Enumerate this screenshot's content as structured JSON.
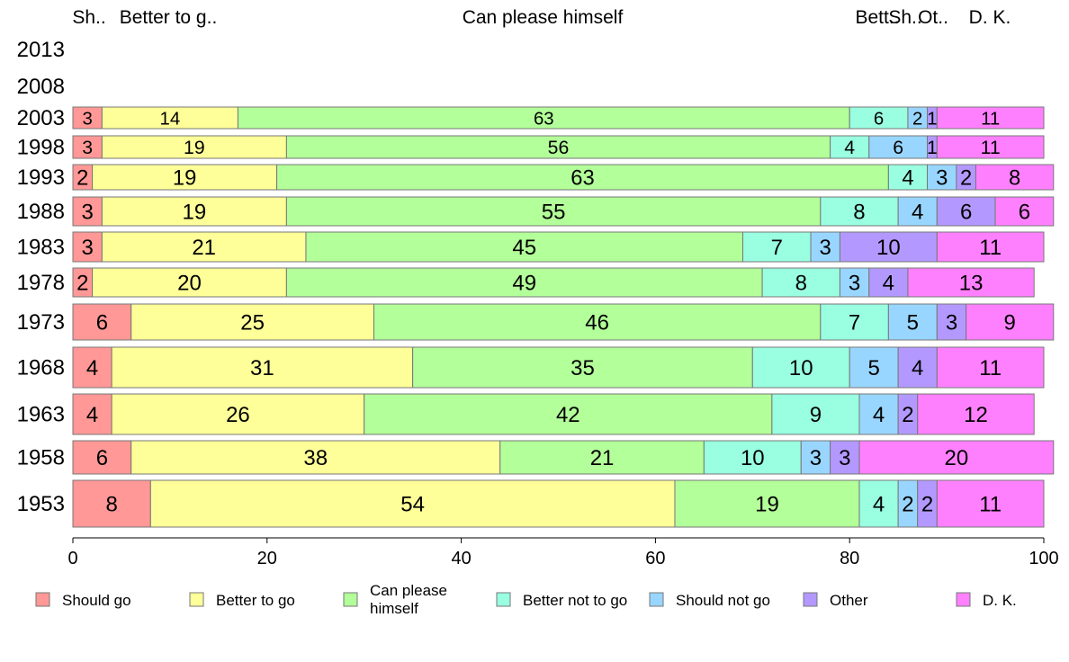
{
  "chart_data": {
    "type": "bar",
    "orientation": "horizontal",
    "stacked": true,
    "title": "",
    "xlabel": "",
    "ylabel": "",
    "xlim": [
      0,
      100
    ],
    "x_ticks": [
      "0",
      "20",
      "40",
      "60",
      "80",
      "100"
    ],
    "grid": false,
    "legend_position": "bottom",
    "top_labels": [
      "Sh..",
      "Better to g..",
      "Can please himself",
      "Bett..",
      "Sh..",
      "Ot..",
      "D. K."
    ],
    "categories": [
      "2013",
      "2008",
      "2003",
      "1998",
      "1993",
      "1988",
      "1983",
      "1978",
      "1973",
      "1968",
      "1963",
      "1958",
      "1953"
    ],
    "series": [
      {
        "name": "Should go",
        "color": "#ff9896",
        "values": [
          null,
          null,
          3,
          3,
          2,
          3,
          3,
          2,
          6,
          4,
          4,
          6,
          8
        ]
      },
      {
        "name": "Better to go",
        "color": "#ffff99",
        "values": [
          null,
          null,
          14,
          19,
          19,
          19,
          21,
          20,
          25,
          31,
          26,
          38,
          54
        ]
      },
      {
        "name": "Can please himself",
        "color": "#b3ff99",
        "values": [
          null,
          null,
          63,
          56,
          63,
          55,
          45,
          49,
          46,
          35,
          42,
          21,
          19
        ]
      },
      {
        "name": "Better not to go",
        "color": "#99ffe0",
        "values": [
          null,
          null,
          6,
          4,
          4,
          8,
          7,
          8,
          7,
          10,
          9,
          10,
          4
        ]
      },
      {
        "name": "Should not go",
        "color": "#99d6ff",
        "values": [
          null,
          null,
          2,
          6,
          3,
          4,
          3,
          3,
          5,
          5,
          4,
          3,
          2
        ]
      },
      {
        "name": "Other",
        "color": "#b399ff",
        "values": [
          null,
          null,
          1,
          1,
          2,
          6,
          10,
          4,
          3,
          4,
          2,
          3,
          2
        ]
      },
      {
        "name": "D. K.",
        "color": "#ff80ff",
        "values": [
          null,
          null,
          11,
          11,
          8,
          6,
          11,
          13,
          9,
          11,
          12,
          20,
          11
        ]
      }
    ]
  },
  "legend_labels": [
    "Should go",
    "Better to go",
    "Can please\nhimself",
    "Better not to go",
    "Should not go",
    "Other",
    "D. K."
  ]
}
